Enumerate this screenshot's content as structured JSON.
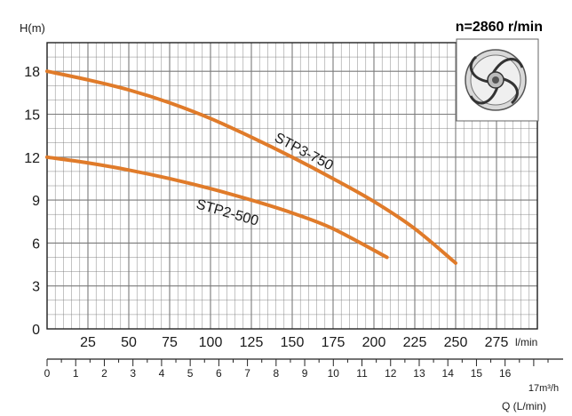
{
  "chart_data": {
    "type": "line",
    "title": "n=2860 r/min",
    "ylabel": "H(m)",
    "xlabel_top": "l/min",
    "x2label": "Q (L/min)",
    "x2label_unit": "17m³/h",
    "xlim": [
      0,
      300
    ],
    "ylim": [
      0,
      20
    ],
    "x2lim": [
      0,
      18
    ],
    "y_ticks": [
      0,
      3,
      6,
      9,
      12,
      15,
      18
    ],
    "y_tick_labels": [
      "0",
      "3",
      "6",
      "9",
      "12",
      "15",
      "18"
    ],
    "x_ticks": [
      25,
      50,
      75,
      100,
      125,
      150,
      175,
      200,
      225,
      250,
      275
    ],
    "x_tick_labels": [
      "25",
      "50",
      "75",
      "100",
      "125",
      "150",
      "175",
      "200",
      "225",
      "250",
      "275"
    ],
    "x2_ticks": [
      0,
      1,
      2,
      3,
      4,
      5,
      6,
      7,
      8,
      9,
      10,
      11,
      12,
      13,
      14,
      15,
      16,
      17
    ],
    "x2_tick_labels": [
      "0",
      "1",
      "2",
      "3",
      "4",
      "5",
      "6",
      "7",
      "8",
      "9",
      "10",
      "11",
      "12",
      "13",
      "14",
      "15",
      "16"
    ],
    "grid": true,
    "series": [
      {
        "name": "STP3-750",
        "color": "#E07B2A",
        "x": [
          0,
          25,
          50,
          75,
          100,
          125,
          150,
          175,
          200,
          225,
          250
        ],
        "y": [
          18,
          17.4,
          16.7,
          15.8,
          14.7,
          13.4,
          12,
          10.5,
          8.9,
          7,
          4.6
        ]
      },
      {
        "name": "STP2-500",
        "color": "#E07B2A",
        "x": [
          0,
          25,
          50,
          75,
          100,
          125,
          150,
          175,
          208
        ],
        "y": [
          12,
          11.6,
          11.1,
          10.5,
          9.8,
          9,
          8.1,
          7,
          5
        ]
      }
    ],
    "series_labels": [
      "STP3-750",
      "STP2-500"
    ]
  },
  "colors": {
    "grid": "#7a7a7a",
    "curve": "#E07B2A",
    "axis": "#222222"
  },
  "impeller_icon": "impeller-icon"
}
